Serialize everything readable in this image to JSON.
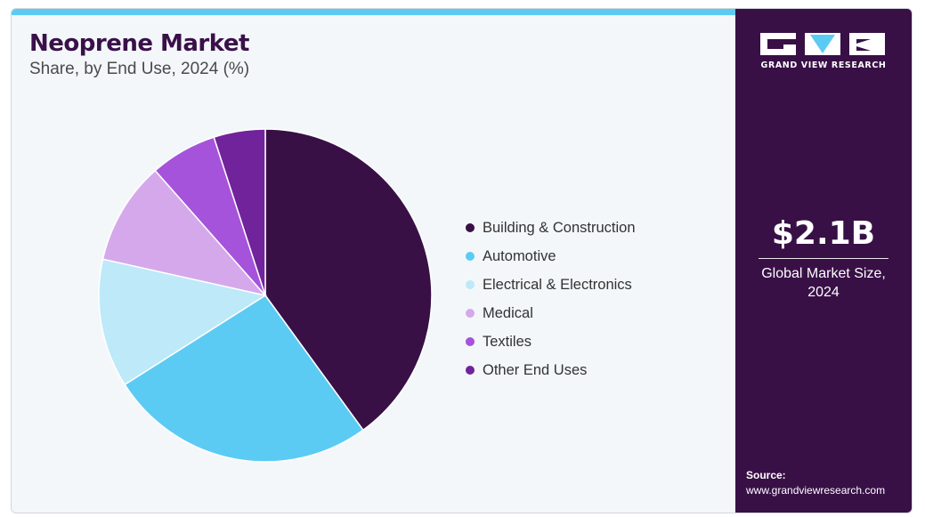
{
  "header": {
    "title": "Neoprene Market",
    "subtitle": "Share, by End Use, 2024 (%)"
  },
  "chart_data": {
    "type": "pie",
    "title": "Neoprene Market",
    "subtitle": "Share, by End Use, 2024 (%)",
    "legend_position": "right",
    "categories": [
      "Building & Construction",
      "Automotive",
      "Electrical & Electronics",
      "Medical",
      "Textiles",
      "Other End Uses"
    ],
    "values": [
      40,
      26,
      12.5,
      10,
      6.5,
      5
    ],
    "colors": [
      "#381046",
      "#5ccbf4",
      "#bde9f8",
      "#d5a8ec",
      "#a653db",
      "#71239b"
    ]
  },
  "sidebar": {
    "brand_name": "GRAND VIEW RESEARCH",
    "market_size": "$2.1B",
    "market_size_caption": "Global Market Size, 2024",
    "source_label": "Source:",
    "source_url": "www.grandviewresearch.com"
  },
  "theme": {
    "accent": "#5ccbf4",
    "panel": "#381046",
    "background": "#f3f7fa"
  }
}
